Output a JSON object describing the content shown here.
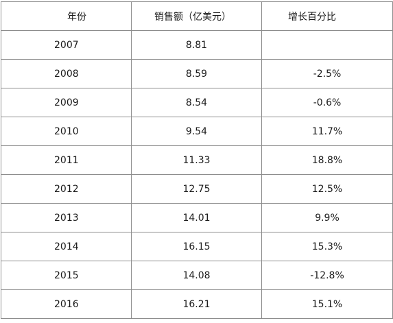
{
  "table": {
    "headers": [
      "年份",
      "销售额（亿美元）",
      "增长百分比"
    ],
    "rows": [
      {
        "year": "2007",
        "sales": "8.81",
        "growth": ""
      },
      {
        "year": "2008",
        "sales": "8.59",
        "growth": "-2.5%"
      },
      {
        "year": "2009",
        "sales": "8.54",
        "growth": "-0.6%"
      },
      {
        "year": "2010",
        "sales": "9.54",
        "growth": "11.7%"
      },
      {
        "year": "2011",
        "sales": "11.33",
        "growth": "18.8%"
      },
      {
        "year": "2012",
        "sales": "12.75",
        "growth": "12.5%"
      },
      {
        "year": "2013",
        "sales": "14.01",
        "growth": "9.9%"
      },
      {
        "year": "2014",
        "sales": "16.15",
        "growth": "15.3%"
      },
      {
        "year": "2015",
        "sales": "14.08",
        "growth": "-12.8%"
      },
      {
        "year": "2016",
        "sales": "16.21",
        "growth": "15.1%"
      }
    ]
  },
  "colors": {
    "border": "#8c8c8c",
    "text": "#1a1a1a",
    "background": "#ffffff"
  }
}
